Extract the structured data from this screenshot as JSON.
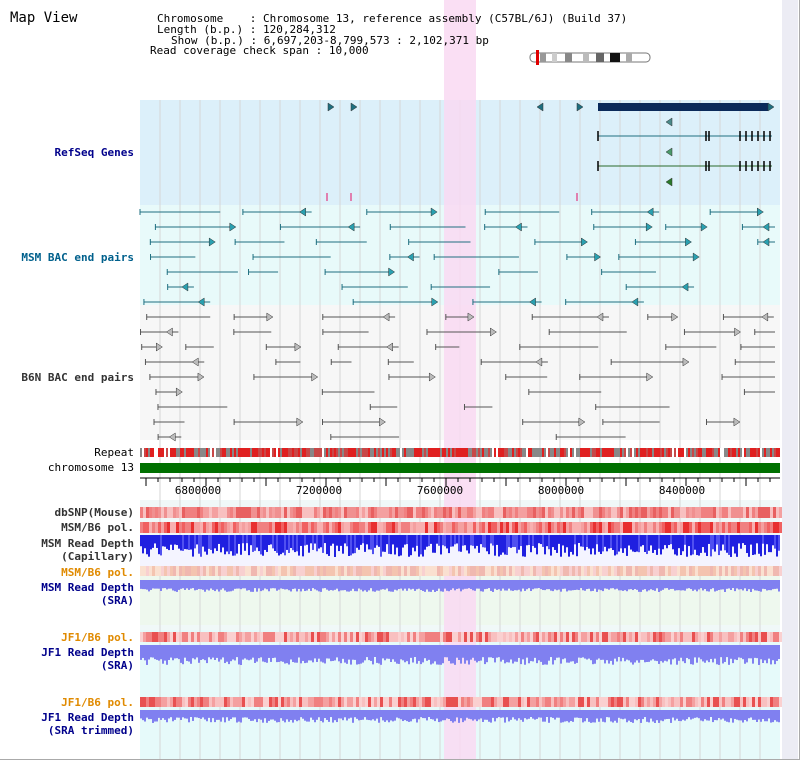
{
  "title": "Map View",
  "info": {
    "chromosome_label": "Chromosome",
    "chromosome_value": "Chromosome 13, reference assembly (C57BL/6J) (Build 37)",
    "length_label": "Length (b.p.)",
    "length_value": "120,284,312",
    "show_label": "Show (b.p.)",
    "show_value": "6,697,203-8,799,573 : 2,102,371 bp",
    "coverage_label": "Read coverage check span",
    "coverage_value": "10,000"
  },
  "tracks": {
    "refseq": "RefSeq Genes",
    "msm_bac": "MSM BAC end pairs",
    "b6n_bac": "B6N BAC end pairs",
    "repeat": "Repeat",
    "chromosome": "chromosome 13",
    "dbsnp": "dbSNP(Mouse)",
    "msm_b6_pol": "MSM/B6 pol.",
    "msm_depth_cap_1": "MSM Read Depth",
    "msm_depth_cap_2": "(Capillary)",
    "msm_b6_pol_2": "MSM/B6 pol.",
    "msm_depth_sra_1": "MSM Read Depth",
    "msm_depth_sra_2": "(SRA)",
    "jf1_pol_1": "JF1/B6 pol.",
    "jf1_depth_sra_1": "JF1 Read Depth",
    "jf1_depth_sra_2": "(SRA)",
    "jf1_pol_2": "JF1/B6 pol.",
    "jf1_depth_trim_1": "JF1 Read Depth",
    "jf1_depth_trim_2": "(SRA trimmed)"
  },
  "axis_ticks": [
    "6800000",
    "7200000",
    "7600000",
    "8000000",
    "8400000"
  ],
  "colors": {
    "refseq_bg": "#dcf0fa",
    "bac_bg": "#e8fafa",
    "b6n_bg": "#f7f7f7",
    "highlight": "#f9d9f2",
    "gene_navy": "#0a2a5a",
    "teal": "#1f6f80",
    "chromosome_green": "#007000",
    "label_blue": "#00008b",
    "label_teal": "#00608c",
    "label_orange": "#e08a00",
    "depth_blue": "#2020e0",
    "depth_light": "#8080f0"
  }
}
